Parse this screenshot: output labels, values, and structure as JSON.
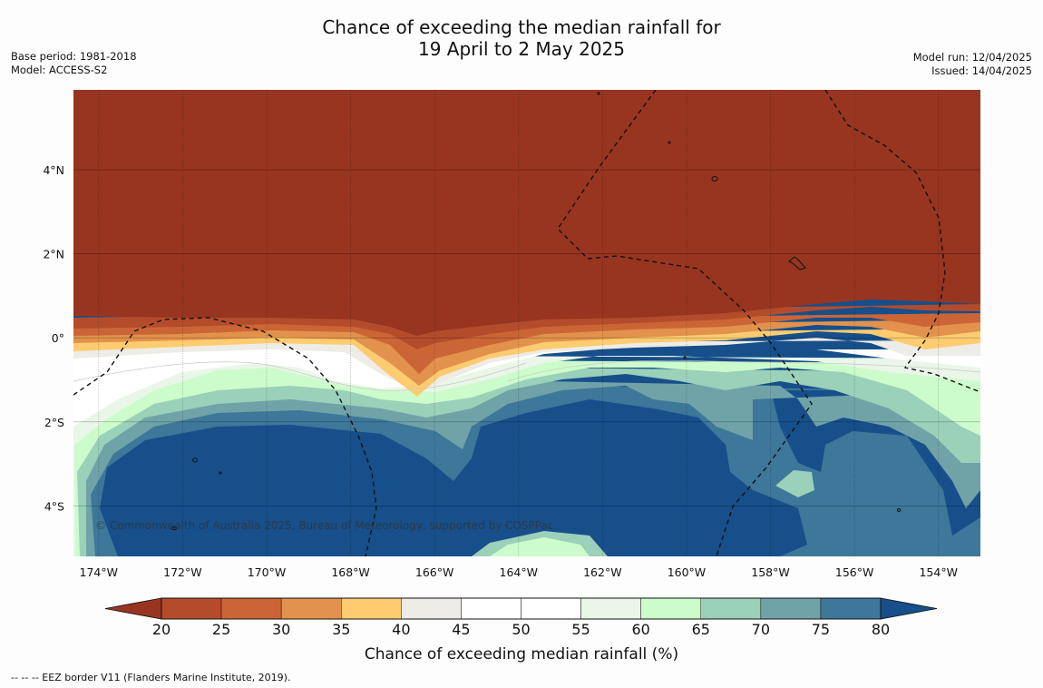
{
  "title": {
    "line1": "Chance of exceeding the median rainfall for",
    "line2": "19 April to 2 May 2025"
  },
  "meta_left": {
    "base_period": "Base period: 1981-2018",
    "model": "Model: ACCESS-S2"
  },
  "meta_right": {
    "model_run": "Model run: 12/04/2025",
    "issued": "Issued: 14/04/2025"
  },
  "map": {
    "copyright": "© Commonwealth of Australia 2025, Bureau of Meteorology, supported by COSPPac",
    "lon_labels": [
      "174°W",
      "172°W",
      "170°W",
      "168°W",
      "166°W",
      "164°W",
      "162°W",
      "160°W",
      "158°W",
      "156°W",
      "154°W"
    ],
    "lat_labels": [
      "4°N",
      "2°N",
      "0°",
      "2°S",
      "4°S"
    ],
    "lon_range": [
      -174.6,
      -153.0
    ],
    "lat_range": [
      -5.2,
      5.9
    ]
  },
  "colorbar": {
    "title": "Chance of exceeding median rainfall (%)",
    "ticks": [
      "20",
      "25",
      "30",
      "35",
      "40",
      "45",
      "50",
      "55",
      "60",
      "65",
      "70",
      "75",
      "80"
    ],
    "colors": [
      "#973521",
      "#b44c2c",
      "#cc6536",
      "#e2924c",
      "#fdcc70",
      "#eeece6",
      "#ffffff",
      "#ffffff",
      "#e9f6e8",
      "#ccfccb",
      "#9bd0b9",
      "#6fa3a8",
      "#3d7799",
      "#164f8a"
    ]
  },
  "footer": "-- -- -- EEZ border V11 (Flanders Marine Institute, 2019)."
}
